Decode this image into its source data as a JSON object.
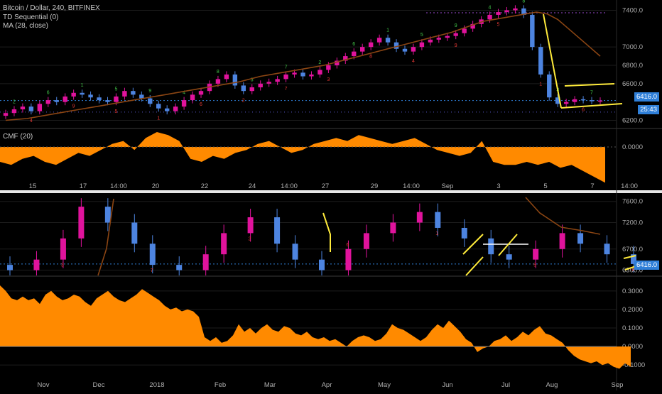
{
  "colors": {
    "bull": "#e0139c",
    "bear": "#4d84e0",
    "ma": "#8b4513",
    "cmf": "#ff8a00",
    "trendline": "#ffeb3b",
    "td_buy": "#e53935",
    "td_sell": "#43c84a",
    "grid": "#1c1c1c",
    "text": "#b0b0b0",
    "price_line": "#2f7fd8"
  },
  "top_panel": {
    "legend": {
      "symbol": "Bitcoin / Dollar, 240, BITFINEX",
      "study1": "TD Sequential (0)",
      "study2": "MA (28, close)",
      "cmf": "CMF (20)"
    },
    "price_tag": "6416.0",
    "time_tag": "25:43",
    "price_ticks": [
      "7400.0",
      "7000.0",
      "6800.0",
      "6600.0",
      "6200.0"
    ],
    "cmf_ticks": [
      "0.0000"
    ],
    "x_labels": [
      "15",
      "17",
      "14:00",
      "20",
      "22",
      "24",
      "14:00",
      "27",
      "29",
      "14:00",
      "Sep",
      "3",
      "5",
      "7",
      "14:00"
    ]
  },
  "bottom_panel": {
    "price_tag": "6416.0",
    "price_ticks": [
      "7600.0",
      "7200.0",
      "6700.0",
      "6300.0"
    ],
    "cmf_ticks": [
      "0.3000",
      "0.2000",
      "0.1000",
      "0.0000",
      "-0.1000"
    ],
    "x_labels": [
      "Nov",
      "Dec",
      "2018",
      "Feb",
      "Mar",
      "Apr",
      "May",
      "Jun",
      "Jul",
      "Aug",
      "Sep"
    ]
  },
  "chart_data": [
    {
      "type": "candlestick",
      "title": "Bitcoin / Dollar, 240, BITFINEX",
      "timeframe": "240",
      "ylim": [
        6150,
        7450
      ],
      "close_series": [
        6280,
        6320,
        6350,
        6300,
        6380,
        6420,
        6400,
        6460,
        6500,
        6480,
        6450,
        6420,
        6400,
        6460,
        6520,
        6480,
        6440,
        6380,
        6330,
        6300,
        6350,
        6420,
        6480,
        6520,
        6600,
        6650,
        6700,
        6580,
        6520,
        6560,
        6600,
        6620,
        6650,
        6700,
        6720,
        6680,
        6700,
        6750,
        6800,
        6850,
        6900,
        6950,
        7000,
        7050,
        7100,
        7050,
        6980,
        6950,
        7000,
        7050,
        7080,
        7100,
        7120,
        7150,
        7200,
        7250,
        7300,
        7350,
        7380,
        7400,
        7420,
        7350,
        7000,
        6700,
        6450,
        6380,
        6400,
        6430,
        6420,
        6410,
        6416
      ],
      "ma28": [
        6200,
        6210,
        6220,
        6240,
        6260,
        6280,
        6300,
        6320,
        6340,
        6360,
        6380,
        6400,
        6420,
        6440,
        6460,
        6480,
        6500,
        6520,
        6540,
        6560,
        6580,
        6600,
        6620,
        6650,
        6680,
        6700,
        6720,
        6740,
        6760,
        6780,
        6800,
        6830,
        6860,
        6890,
        6920,
        6950,
        6980,
        7010,
        7040,
        7070,
        7100,
        7130,
        7160,
        7200,
        7240,
        7280,
        7300,
        7320,
        7340,
        7360,
        7380,
        7360,
        7300,
        7200,
        7100,
        7000,
        6900
      ]
    },
    {
      "type": "area",
      "title": "CMF (20)",
      "y_zero_label": "0.0000",
      "values": [
        -0.05,
        -0.06,
        -0.04,
        -0.03,
        -0.05,
        -0.06,
        -0.04,
        -0.02,
        -0.03,
        -0.01,
        0.01,
        0.02,
        -0.01,
        0.03,
        0.05,
        0.04,
        0.02,
        -0.04,
        -0.05,
        -0.03,
        -0.04,
        -0.02,
        -0.01,
        0.01,
        0.02,
        0.0,
        -0.02,
        -0.01,
        0.01,
        0.02,
        0.03,
        0.02,
        0.04,
        0.03,
        0.02,
        0.01,
        0.02,
        0.03,
        0.01,
        -0.01,
        -0.02,
        -0.03,
        -0.02,
        0.02,
        -0.05,
        -0.06,
        -0.06,
        -0.05,
        -0.06,
        -0.05,
        -0.07,
        -0.06,
        -0.08,
        -0.1,
        -0.12
      ]
    },
    {
      "type": "candlestick",
      "title": "",
      "ylim": [
        6200,
        7650
      ],
      "close_series": [
        6300,
        6500,
        6900,
        7500,
        7200,
        6800,
        6400,
        6300,
        6600,
        7000,
        7300,
        6800,
        6500,
        6300,
        6700,
        7000,
        7200,
        7400,
        7100,
        6900,
        6600,
        6500,
        6700,
        7000,
        6800,
        6600,
        6416
      ]
    },
    {
      "type": "area",
      "title": "CMF (20)",
      "ylim": [
        -0.13,
        0.33
      ],
      "y_ticks": [
        0.3,
        0.2,
        0.1,
        0.0,
        -0.1
      ],
      "x_labels": [
        "Nov",
        "Dec",
        "2018",
        "Feb",
        "Mar",
        "Apr",
        "May",
        "Jun",
        "Jul",
        "Aug",
        "Sep"
      ],
      "values": [
        0.33,
        0.3,
        0.26,
        0.25,
        0.27,
        0.25,
        0.26,
        0.23,
        0.28,
        0.3,
        0.27,
        0.25,
        0.26,
        0.28,
        0.27,
        0.24,
        0.22,
        0.26,
        0.28,
        0.3,
        0.27,
        0.25,
        0.24,
        0.26,
        0.28,
        0.31,
        0.29,
        0.27,
        0.25,
        0.22,
        0.2,
        0.21,
        0.19,
        0.2,
        0.19,
        0.16,
        0.05,
        0.03,
        0.05,
        0.02,
        0.03,
        0.06,
        0.12,
        0.08,
        0.1,
        0.07,
        0.1,
        0.12,
        0.09,
        0.08,
        0.11,
        0.1,
        0.07,
        0.06,
        0.08,
        0.05,
        0.04,
        0.05,
        0.03,
        0.04,
        0.02,
        0.0,
        0.03,
        0.05,
        0.06,
        0.05,
        0.03,
        0.04,
        0.07,
        0.12,
        0.1,
        0.09,
        0.07,
        0.05,
        0.03,
        0.05,
        0.09,
        0.12,
        0.1,
        0.14,
        0.11,
        0.08,
        0.04,
        0.02,
        -0.03,
        -0.01,
        0.0,
        0.03,
        0.04,
        0.06,
        0.03,
        0.05,
        0.08,
        0.06,
        0.09,
        0.11,
        0.07,
        0.06,
        0.04,
        0.02,
        -0.02,
        -0.05,
        -0.07,
        -0.08,
        -0.09,
        -0.08,
        -0.1,
        -0.09,
        -0.11,
        -0.12,
        -0.09,
        -0.11
      ]
    }
  ]
}
